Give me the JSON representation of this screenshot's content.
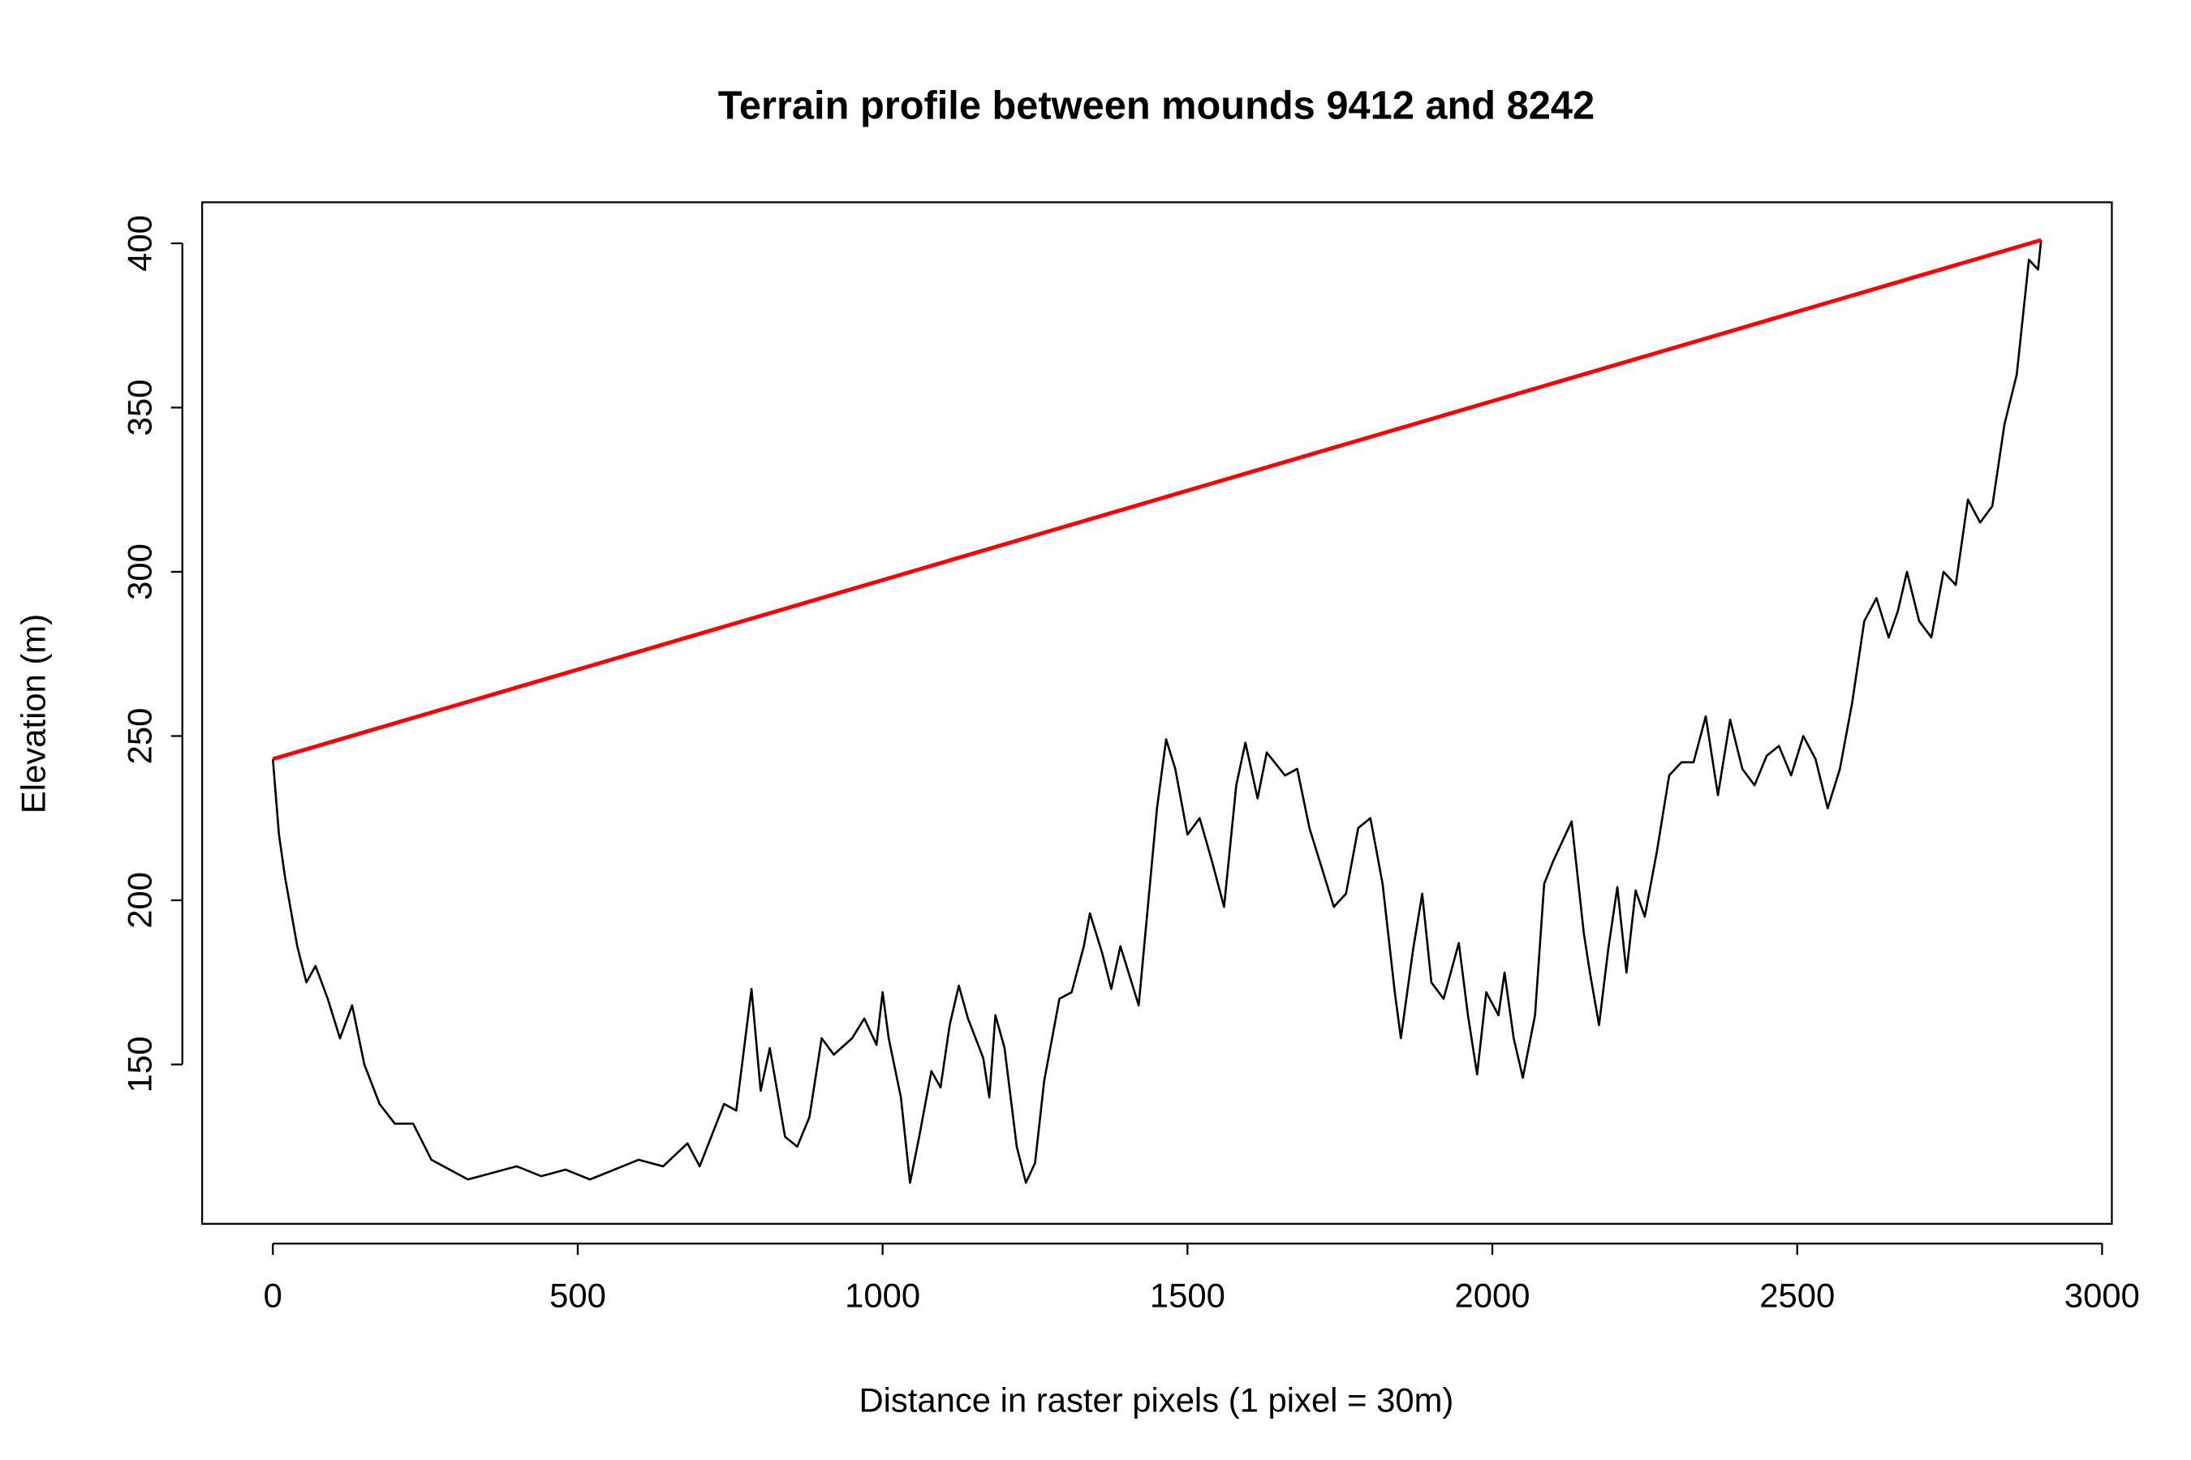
{
  "chart_data": {
    "type": "line",
    "title": "Terrain profile between mounds 9412 and 8242",
    "x_label": "Distance in raster pixels (1 pixel = 30m)",
    "y_label": "Elevation (m)",
    "xlim": [
      -116,
      3016
    ],
    "ylim": [
      101.5,
      412.5
    ],
    "xticks": [
      0,
      500,
      1000,
      1500,
      2000,
      2500,
      3000
    ],
    "yticks": [
      150,
      200,
      250,
      300,
      350,
      400
    ],
    "series": [
      {
        "color": "#000000",
        "x": [
          0,
          10,
          20,
          40,
          55,
          70,
          90,
          110,
          130,
          150,
          175,
          200,
          230,
          260,
          300,
          320,
          360,
          400,
          440,
          480,
          520,
          560,
          600,
          640,
          680,
          700,
          740,
          760,
          785,
          800,
          815,
          840,
          860,
          880,
          900,
          920,
          950,
          970,
          990,
          1000,
          1010,
          1030,
          1045,
          1060,
          1080,
          1095,
          1110,
          1125,
          1140,
          1165,
          1175,
          1185,
          1200,
          1220,
          1235,
          1250,
          1265,
          1290,
          1310,
          1330,
          1340,
          1360,
          1375,
          1390,
          1420,
          1450,
          1465,
          1480,
          1500,
          1520,
          1540,
          1560,
          1580,
          1595,
          1615,
          1630,
          1660,
          1680,
          1700,
          1720,
          1740,
          1760,
          1780,
          1800,
          1820,
          1840,
          1850,
          1870,
          1885,
          1900,
          1920,
          1945,
          1960,
          1975,
          1990,
          2010,
          2020,
          2035,
          2050,
          2070,
          2085,
          2100,
          2115,
          2130,
          2150,
          2160,
          2175,
          2190,
          2205,
          2220,
          2235,
          2250,
          2270,
          2290,
          2310,
          2330,
          2350,
          2370,
          2390,
          2410,
          2430,
          2450,
          2470,
          2490,
          2510,
          2530,
          2550,
          2570,
          2590,
          2610,
          2630,
          2650,
          2665,
          2680,
          2700,
          2720,
          2740,
          2760,
          2780,
          2800,
          2820,
          2840,
          2860,
          2880,
          2895,
          2900
        ],
        "values": [
          243,
          220,
          207,
          186,
          175,
          180,
          170,
          158,
          168,
          150,
          138,
          132,
          132,
          121,
          117,
          115,
          117,
          119,
          116,
          118,
          115,
          118,
          121,
          119,
          126,
          119,
          138,
          136,
          173,
          142,
          155,
          128,
          125,
          134,
          158,
          153,
          158,
          164,
          156,
          172,
          158,
          140,
          114,
          128,
          148,
          143,
          162,
          174,
          164,
          152,
          140,
          165,
          155,
          125,
          114,
          120,
          145,
          170,
          172,
          186,
          196,
          184,
          173,
          186,
          168,
          228,
          249,
          240,
          220,
          225,
          212,
          198,
          235,
          248,
          231,
          245,
          238,
          240,
          222,
          210,
          198,
          202,
          222,
          225,
          205,
          172,
          158,
          185,
          202,
          175,
          170,
          187,
          165,
          147,
          172,
          165,
          178,
          158,
          146,
          165,
          205,
          212,
          218,
          224,
          190,
          178,
          162,
          185,
          204,
          178,
          203,
          195,
          215,
          238,
          242,
          242,
          256,
          232,
          255,
          240,
          235,
          244,
          247,
          238,
          250,
          243,
          228,
          240,
          260,
          285,
          292,
          280,
          288,
          300,
          285,
          280,
          300,
          296,
          322,
          315,
          320,
          345,
          360,
          395,
          392,
          401
        ]
      },
      {
        "color": "#ff0000",
        "x": [
          0,
          2900
        ],
        "values": [
          243,
          401
        ]
      }
    ]
  }
}
